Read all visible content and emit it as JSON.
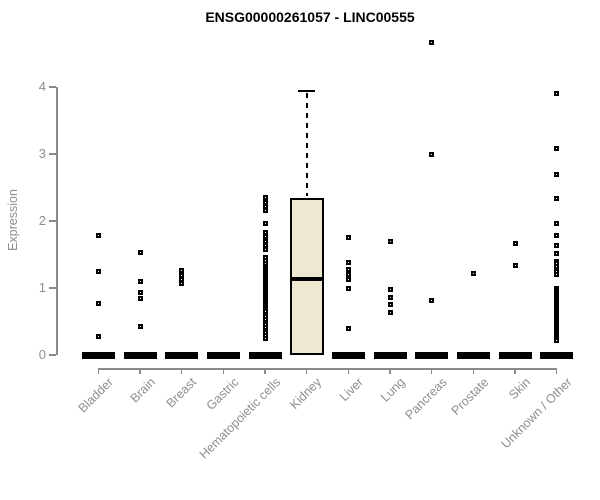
{
  "title": "ENSG00000261057 - LINC00555",
  "y_axis": {
    "label": "Expression"
  },
  "colors": {
    "title": "#000000",
    "axis": "#8a8a8a",
    "label": "#8e8e8e",
    "box_fill": "#ede8cf",
    "box_border": "#000000",
    "point": "#000000"
  },
  "chart_data": {
    "type": "boxplot",
    "title": "ENSG00000261057 - LINC00555",
    "xlabel": "",
    "ylabel": "Expression",
    "ylim": [
      0,
      4
    ],
    "yticks": [
      0,
      1,
      2,
      3,
      4
    ],
    "grid": false,
    "legend": false,
    "categories": [
      "Bladder",
      "Brain",
      "Breast",
      "Gastric",
      "Hematopoietic cells",
      "Kidney",
      "Liver",
      "Lung",
      "Pancreas",
      "Prostate",
      "Skin",
      "Unknown / Other"
    ],
    "boxes": [
      {
        "category": "Bladder",
        "q1": 0,
        "median": 0,
        "q3": 0,
        "whisker_low": 0,
        "whisker_high": 0,
        "outliers": [
          1.79,
          1.25,
          0.77,
          0.28
        ]
      },
      {
        "category": "Brain",
        "q1": 0,
        "median": 0,
        "q3": 0,
        "whisker_low": 0,
        "whisker_high": 0,
        "outliers": [
          1.53,
          1.1,
          0.93,
          0.84,
          0.42
        ]
      },
      {
        "category": "Breast",
        "q1": 0,
        "median": 0,
        "q3": 0,
        "whisker_low": 0,
        "whisker_high": 0,
        "outliers": [
          1.26,
          1.19,
          1.13,
          1.07
        ]
      },
      {
        "category": "Gastric",
        "q1": 0,
        "median": 0,
        "q3": 0,
        "whisker_low": 0,
        "whisker_high": 0,
        "outliers": []
      },
      {
        "category": "Hematopoietic cells",
        "q1": 0,
        "median": 0,
        "q3": 0,
        "whisker_low": 0,
        "whisker_high": 0,
        "outliers": [
          2.35,
          2.28,
          2.22,
          2.16,
          1.96,
          1.83,
          1.77,
          1.7,
          1.64,
          1.58,
          1.46,
          1.41,
          1.36,
          1.31,
          1.28,
          1.25,
          1.22,
          1.19,
          1.16,
          1.13,
          1.1,
          1.07,
          1.04,
          1.01,
          0.98,
          0.95,
          0.92,
          0.89,
          0.86,
          0.83,
          0.8,
          0.77,
          0.74,
          0.71,
          0.68,
          0.65,
          0.61,
          0.57,
          0.53,
          0.49,
          0.45,
          0.41,
          0.37,
          0.33,
          0.29,
          0.25
        ]
      },
      {
        "category": "Kidney",
        "q1": 0,
        "median": 1.13,
        "q3": 2.34,
        "whisker_low": 0,
        "whisker_high": 3.94,
        "outliers": []
      },
      {
        "category": "Liver",
        "q1": 0,
        "median": 0,
        "q3": 0,
        "whisker_low": 0,
        "whisker_high": 0,
        "outliers": [
          1.75,
          1.38,
          1.28,
          1.2,
          1.13,
          1.0,
          0.39
        ]
      },
      {
        "category": "Lung",
        "q1": 0,
        "median": 0,
        "q3": 0,
        "whisker_low": 0,
        "whisker_high": 0,
        "outliers": [
          1.7,
          0.98,
          0.86,
          0.76,
          0.63
        ]
      },
      {
        "category": "Pancreas",
        "q1": 0,
        "median": 0,
        "q3": 0,
        "whisker_low": 0,
        "whisker_high": 0,
        "outliers": [
          4.66,
          3.0,
          0.81
        ]
      },
      {
        "category": "Prostate",
        "q1": 0,
        "median": 0,
        "q3": 0,
        "whisker_low": 0,
        "whisker_high": 0,
        "outliers": [
          1.21
        ]
      },
      {
        "category": "Skin",
        "q1": 0,
        "median": 0,
        "q3": 0,
        "whisker_low": 0,
        "whisker_high": 0,
        "outliers": [
          1.67,
          1.33
        ]
      },
      {
        "category": "Unknown / Other",
        "q1": 0,
        "median": 0,
        "q3": 0,
        "whisker_low": 0,
        "whisker_high": 0,
        "outliers": [
          3.91,
          3.09,
          2.7,
          2.34,
          1.96,
          1.78,
          1.64,
          1.52,
          1.4,
          1.36,
          1.32,
          1.28,
          1.24,
          1.2,
          1.0,
          0.97,
          0.94,
          0.91,
          0.88,
          0.85,
          0.82,
          0.79,
          0.76,
          0.73,
          0.7,
          0.67,
          0.64,
          0.61,
          0.58,
          0.55,
          0.52,
          0.49,
          0.46,
          0.43,
          0.4,
          0.37,
          0.34,
          0.31,
          0.28,
          0.25,
          0.22
        ]
      }
    ]
  }
}
